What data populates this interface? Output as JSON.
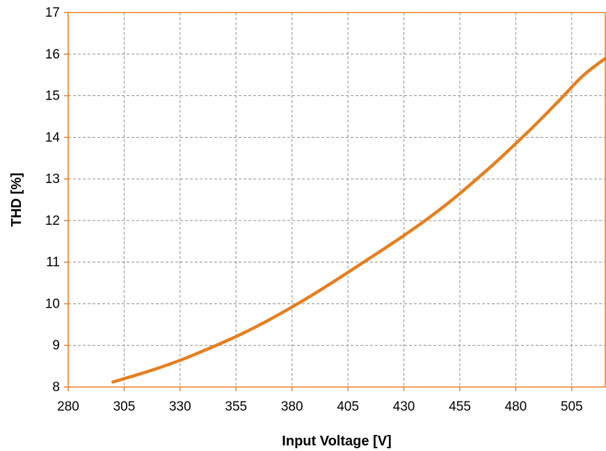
{
  "chart_data": {
    "type": "line",
    "xlabel": "Input Voltage [V]",
    "ylabel": "THD [%]",
    "xlim": [
      280,
      520
    ],
    "ylim": [
      8,
      17
    ],
    "xticks": [
      280,
      305,
      330,
      355,
      380,
      405,
      430,
      455,
      480,
      505
    ],
    "yticks": [
      8,
      9,
      10,
      11,
      12,
      13,
      14,
      15,
      16,
      17
    ],
    "grid": true,
    "line_color": "#e87e1e",
    "frame_color": "#e87e1e",
    "series": [
      {
        "x": [
          300,
          310,
          320,
          330,
          340,
          350,
          360,
          370,
          380,
          390,
          400,
          410,
          420,
          430,
          440,
          450,
          460,
          470,
          480,
          490,
          500,
          510,
          520
        ],
        "values": [
          8.12,
          8.28,
          8.45,
          8.64,
          8.86,
          9.09,
          9.34,
          9.62,
          9.92,
          10.24,
          10.58,
          10.93,
          11.28,
          11.64,
          12.02,
          12.43,
          12.88,
          13.35,
          13.85,
          14.37,
          14.92,
          15.48,
          15.9
        ]
      }
    ]
  }
}
